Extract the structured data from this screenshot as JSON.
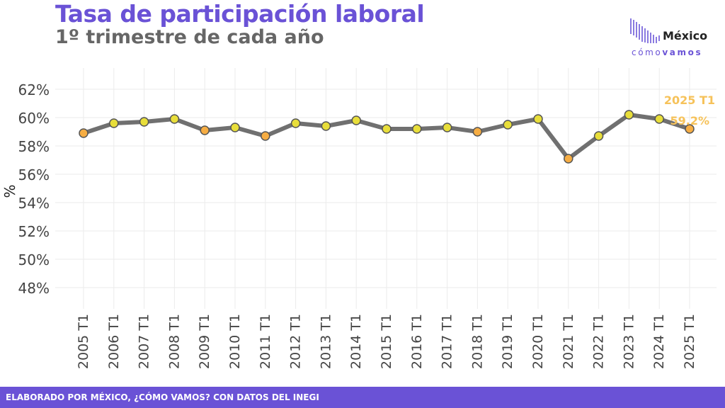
{
  "title": "Tasa de participación laboral",
  "subtitle": "1º trimestre de cada año",
  "logo": {
    "top_text": "México",
    "bottom_a": "cómo",
    "bottom_b": "vamos"
  },
  "footer": {
    "text": "ELABORADO POR MÉXICO, ¿CÓMO VAMOS? CON DATOS DEL INEGI"
  },
  "colors": {
    "title": "#6a52d6",
    "footer_bg": "#6a52d6",
    "line": "#707070",
    "point_above": "#e8de3a",
    "point_below": "#f6ad43",
    "annotation": "#f6c25a"
  },
  "chart_data": {
    "type": "line",
    "ylabel": "%",
    "xlabel": "",
    "ylim": [
      46.5,
      63.5
    ],
    "yticks": [
      48,
      50,
      52,
      54,
      56,
      58,
      60,
      62
    ],
    "ytick_labels": [
      "48%",
      "50%",
      "52%",
      "54%",
      "56%",
      "58%",
      "60%",
      "62%"
    ],
    "categories": [
      "2005 T1",
      "2006 T1",
      "2007 T1",
      "2008 T1",
      "2009 T1",
      "2010 T1",
      "2011 T1",
      "2012 T1",
      "2013 T1",
      "2014 T1",
      "2015 T1",
      "2016 T1",
      "2017 T1",
      "2018 T1",
      "2019 T1",
      "2020 T1",
      "2021 T1",
      "2022 T1",
      "2023 T1",
      "2024 T1",
      "2025 T1"
    ],
    "values": [
      58.9,
      59.6,
      59.7,
      59.9,
      59.1,
      59.3,
      58.7,
      59.6,
      59.4,
      59.8,
      59.2,
      59.2,
      59.3,
      59.0,
      59.5,
      59.9,
      57.1,
      58.7,
      60.2,
      59.9,
      59.2
    ],
    "point_types": [
      "below",
      "above",
      "above",
      "above",
      "below",
      "above",
      "below",
      "above",
      "above",
      "above",
      "above",
      "above",
      "above",
      "below",
      "above",
      "above",
      "below",
      "above",
      "above",
      "above",
      "below"
    ],
    "annotation": {
      "label": "2025 T1",
      "value": "59.2%"
    },
    "grid": true,
    "legend": "none"
  }
}
